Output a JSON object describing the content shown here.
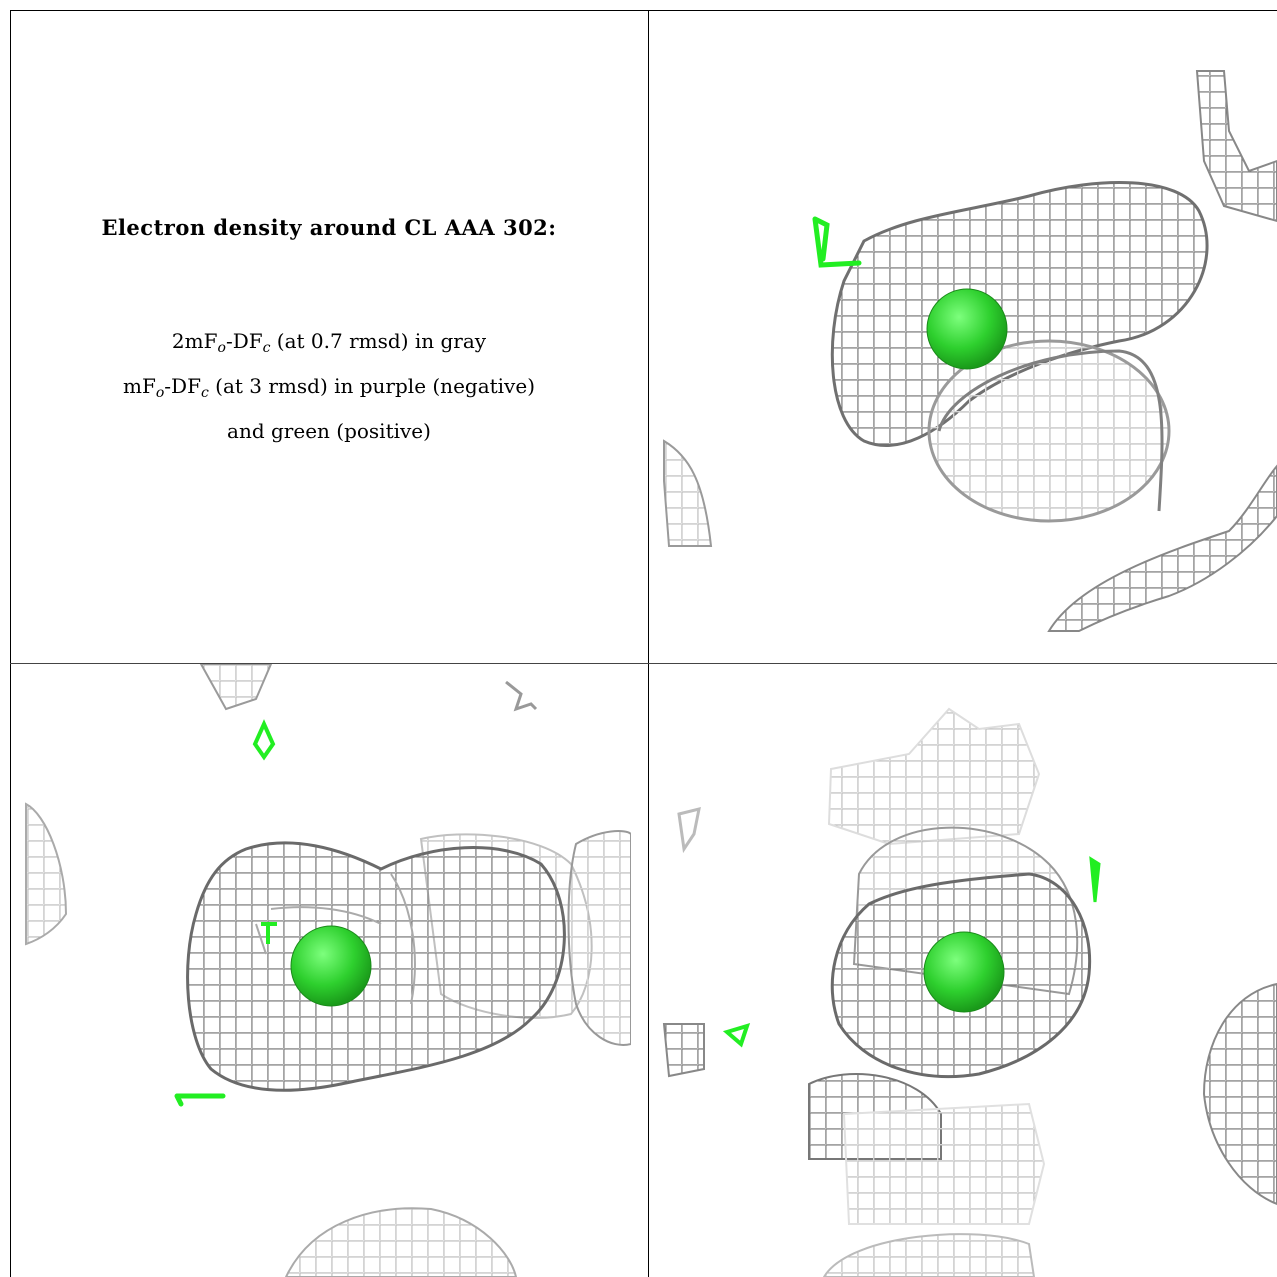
{
  "caption": {
    "title": "Electron density around CL AAA 302:",
    "line1": {
      "pre": "2mF",
      "sub1": "o",
      "mid": "-DF",
      "sub2": "c",
      "post": " (at 0.7 rmsd) in gray"
    },
    "line2": {
      "pre": "mF",
      "sub1": "o",
      "mid": "-DF",
      "sub2": "c",
      "post": " (at 3 rmsd) in purple (negative)"
    },
    "line3": "and green (positive)"
  },
  "colors": {
    "mesh_dark": "#6e6e6e",
    "mesh_light": "#c8c8c8",
    "positive": "#22ee22",
    "ion": "#2ecc2e"
  },
  "panels": [
    {
      "name": "view-1"
    },
    {
      "name": "view-2"
    },
    {
      "name": "view-3"
    }
  ]
}
